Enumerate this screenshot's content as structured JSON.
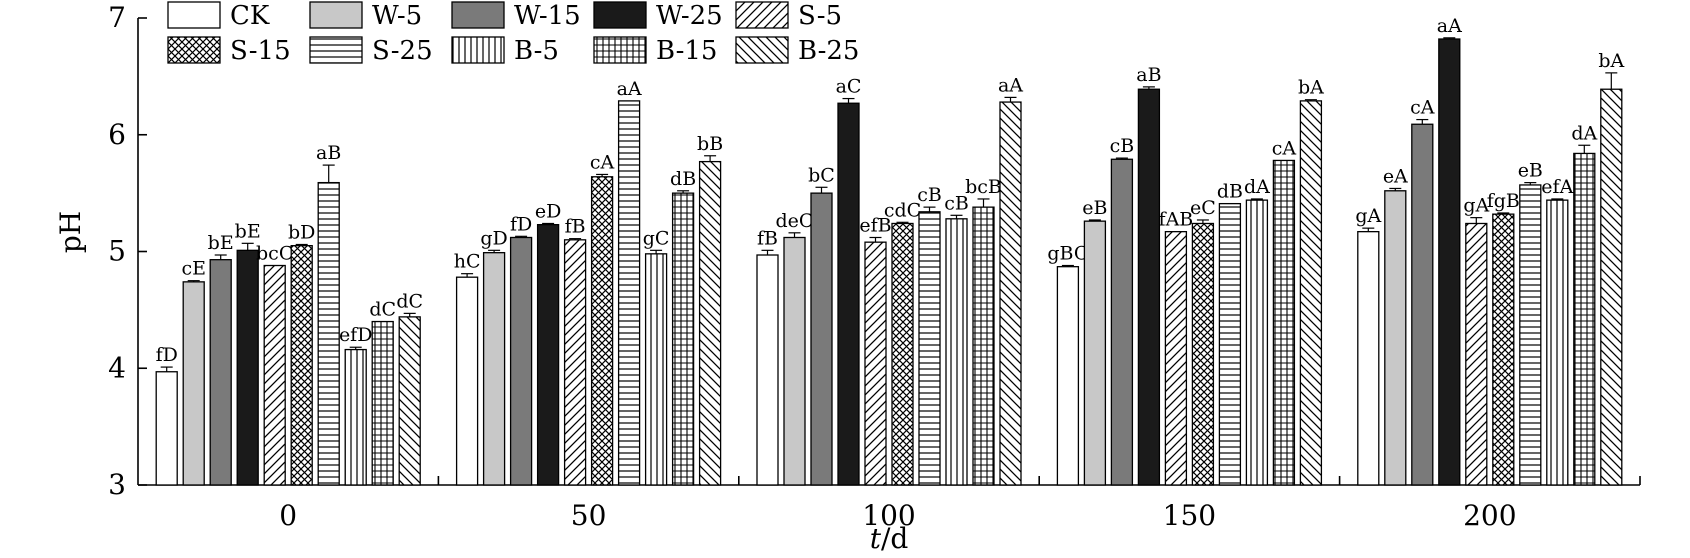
{
  "chart_data": {
    "type": "bar",
    "title": "",
    "xlabel_italic": "t",
    "xlabel_unit": "/d",
    "ylabel": "pH",
    "ylim": [
      3,
      7
    ],
    "yticks": [
      "3",
      "4",
      "5",
      "6",
      "7"
    ],
    "categories": [
      "0",
      "50",
      "100",
      "150",
      "200"
    ],
    "legend_position": "top-left",
    "series": [
      {
        "name": "CK",
        "pattern": "white",
        "values": [
          3.97,
          4.78,
          4.97,
          4.87,
          5.17
        ],
        "errors": [
          0.04,
          0.03,
          0.04,
          0.01,
          0.03
        ],
        "labels": [
          "fD",
          "hC",
          "fB",
          "gBC",
          "gA"
        ]
      },
      {
        "name": "W-5",
        "pattern": "lightgray",
        "values": [
          4.74,
          4.99,
          5.12,
          5.26,
          5.52
        ],
        "errors": [
          0.01,
          0.02,
          0.04,
          0.01,
          0.02
        ],
        "labels": [
          "cE",
          "gD",
          "deC",
          "eB",
          "eA"
        ]
      },
      {
        "name": "W-15",
        "pattern": "gray",
        "values": [
          4.93,
          5.12,
          5.5,
          5.79,
          6.09
        ],
        "errors": [
          0.04,
          0.01,
          0.05,
          0.01,
          0.04
        ],
        "labels": [
          "bE",
          "fD",
          "bC",
          "cB",
          "cA"
        ]
      },
      {
        "name": "W-25",
        "pattern": "black",
        "values": [
          5.01,
          5.23,
          6.27,
          6.39,
          6.82
        ],
        "errors": [
          0.06,
          0.01,
          0.04,
          0.02,
          0.01
        ],
        "labels": [
          "bE",
          "eD",
          "aC",
          "aB",
          "aA"
        ]
      },
      {
        "name": "S-5",
        "pattern": "diag",
        "values": [
          4.88,
          5.1,
          5.08,
          5.17,
          5.24
        ],
        "errors": [
          0.0,
          0.01,
          0.04,
          0.0,
          0.05
        ],
        "labels": [
          "bcC",
          "fB",
          "efB",
          "fAB",
          "gA"
        ]
      },
      {
        "name": "S-15",
        "pattern": "cross",
        "values": [
          5.05,
          5.64,
          5.24,
          5.24,
          5.32
        ],
        "errors": [
          0.01,
          0.02,
          0.01,
          0.03,
          0.01
        ],
        "labels": [
          "bD",
          "cA",
          "cdC",
          "eC",
          "fgB"
        ]
      },
      {
        "name": "S-25",
        "pattern": "hlines",
        "values": [
          5.59,
          6.29,
          5.34,
          5.41,
          5.57
        ],
        "errors": [
          0.15,
          0.0,
          0.04,
          0.0,
          0.02
        ],
        "labels": [
          "aB",
          "aA",
          "cB",
          "dB",
          "eB"
        ]
      },
      {
        "name": "B-5",
        "pattern": "vlines",
        "values": [
          4.16,
          4.98,
          5.28,
          5.44,
          5.44
        ],
        "errors": [
          0.02,
          0.03,
          0.03,
          0.01,
          0.01
        ],
        "labels": [
          "efD",
          "gC",
          "cB",
          "dA",
          "efA"
        ]
      },
      {
        "name": "B-15",
        "pattern": "grid",
        "values": [
          4.4,
          5.5,
          5.38,
          5.78,
          5.84
        ],
        "errors": [
          0.0,
          0.02,
          0.07,
          0.0,
          0.07
        ],
        "labels": [
          "dC",
          "dB",
          "bcB",
          "cA",
          "dA"
        ]
      },
      {
        "name": "B-25",
        "pattern": "backdiag",
        "values": [
          4.44,
          5.77,
          6.28,
          6.29,
          6.39
        ],
        "errors": [
          0.03,
          0.05,
          0.04,
          0.01,
          0.14
        ],
        "labels": [
          "dC",
          "bB",
          "aA",
          "bA",
          "bA"
        ]
      }
    ]
  }
}
